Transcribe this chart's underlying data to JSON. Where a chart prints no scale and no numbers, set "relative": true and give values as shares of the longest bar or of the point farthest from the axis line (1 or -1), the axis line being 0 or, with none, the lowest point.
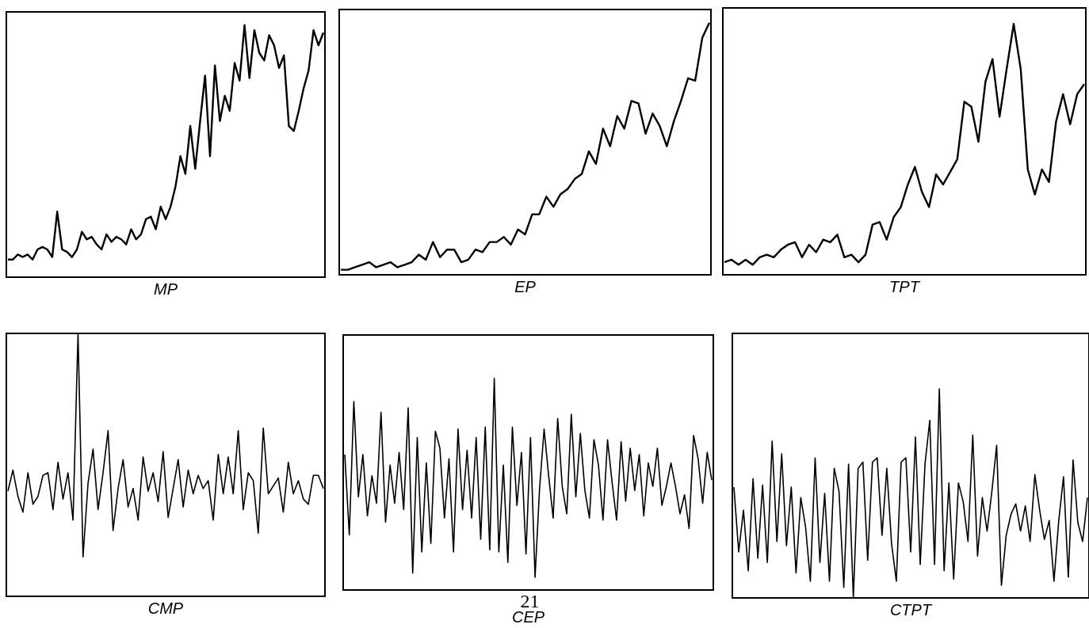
{
  "chart_data": [
    {
      "type": "line",
      "xlabel": "MP",
      "relative": true,
      "categories": [
        null,
        null,
        null,
        null,
        null,
        null,
        null,
        null,
        null,
        null,
        null,
        null,
        null,
        null,
        null,
        null,
        null,
        null,
        null,
        null,
        null,
        null,
        null,
        null,
        null,
        null,
        null,
        null,
        null,
        null,
        null,
        null,
        null,
        null,
        null,
        null,
        null,
        null,
        null,
        null,
        null,
        null,
        null,
        null,
        null,
        null,
        null,
        null,
        null,
        null,
        null,
        null,
        null,
        null,
        null,
        null,
        null,
        null,
        null,
        null,
        null,
        null,
        null,
        null,
        null
      ],
      "series": [
        {
          "color": "#000000",
          "values": [
            0.07,
            0.07,
            0.09,
            0.08,
            0.09,
            0.07,
            0.11,
            0.12,
            0.11,
            0.08,
            0.26,
            0.11,
            0.1,
            0.08,
            0.11,
            0.18,
            0.15,
            0.16,
            0.13,
            0.11,
            0.17,
            0.14,
            0.16,
            0.15,
            0.13,
            0.19,
            0.15,
            0.17,
            0.23,
            0.24,
            0.19,
            0.28,
            0.23,
            0.28,
            0.36,
            0.48,
            0.41,
            0.6,
            0.43,
            0.62,
            0.8,
            0.48,
            0.84,
            0.62,
            0.72,
            0.66,
            0.85,
            0.78,
            1,
            0.79,
            0.98,
            0.89,
            0.86,
            0.96,
            0.92,
            0.83,
            0.88,
            0.6,
            0.58,
            0.66,
            0.75,
            0.82,
            0.98,
            0.92,
            0.97
          ]
        }
      ]
    },
    {
      "type": "line",
      "xlabel": "EP",
      "relative": true,
      "categories": [
        null,
        null,
        null,
        null,
        null,
        null,
        null,
        null,
        null,
        null,
        null,
        null,
        null,
        null,
        null,
        null,
        null,
        null,
        null,
        null,
        null,
        null,
        null,
        null,
        null,
        null,
        null,
        null,
        null,
        null,
        null,
        null,
        null,
        null,
        null,
        null,
        null,
        null,
        null,
        null,
        null,
        null,
        null,
        null,
        null,
        null,
        null,
        null,
        null,
        null,
        null,
        null,
        null
      ],
      "series": [
        {
          "color": "#000000",
          "values": [
            0.02,
            0.02,
            0.03,
            0.04,
            0.05,
            0.03,
            0.04,
            0.05,
            0.03,
            0.04,
            0.05,
            0.08,
            0.06,
            0.13,
            0.07,
            0.1,
            0.1,
            0.05,
            0.06,
            0.1,
            0.09,
            0.13,
            0.13,
            0.15,
            0.12,
            0.18,
            0.16,
            0.24,
            0.24,
            0.31,
            0.27,
            0.32,
            0.34,
            0.38,
            0.4,
            0.49,
            0.44,
            0.58,
            0.51,
            0.63,
            0.58,
            0.69,
            0.68,
            0.56,
            0.64,
            0.59,
            0.51,
            0.61,
            0.69,
            0.78,
            0.77,
            0.94,
            1
          ]
        }
      ]
    },
    {
      "type": "line",
      "xlabel": "TPT",
      "relative": true,
      "categories": [
        null,
        null,
        null,
        null,
        null,
        null,
        null,
        null,
        null,
        null,
        null,
        null,
        null,
        null,
        null,
        null,
        null,
        null,
        null,
        null,
        null,
        null,
        null,
        null,
        null,
        null,
        null,
        null,
        null,
        null,
        null,
        null,
        null,
        null,
        null,
        null,
        null,
        null,
        null,
        null,
        null,
        null,
        null,
        null,
        null,
        null,
        null,
        null,
        null,
        null,
        null,
        null
      ],
      "series": [
        {
          "color": "#000000",
          "values": [
            0.05,
            0.06,
            0.04,
            0.06,
            0.04,
            0.07,
            0.08,
            0.07,
            0.1,
            0.12,
            0.13,
            0.07,
            0.12,
            0.09,
            0.14,
            0.13,
            0.16,
            0.07,
            0.08,
            0.05,
            0.08,
            0.2,
            0.21,
            0.14,
            0.23,
            0.27,
            0.36,
            0.43,
            0.33,
            0.27,
            0.4,
            0.36,
            0.41,
            0.46,
            0.69,
            0.67,
            0.53,
            0.77,
            0.86,
            0.63,
            0.82,
            1,
            0.82,
            0.42,
            0.32,
            0.42,
            0.37,
            0.61,
            0.72,
            0.6,
            0.72,
            0.76
          ]
        }
      ]
    },
    {
      "type": "line",
      "xlabel": "CMP",
      "relative": true,
      "categories": [
        null,
        null,
        null,
        null,
        null,
        null,
        null,
        null,
        null,
        null,
        null,
        null,
        null,
        null,
        null,
        null,
        null,
        null,
        null,
        null,
        null,
        null,
        null,
        null,
        null,
        null,
        null,
        null,
        null,
        null,
        null,
        null,
        null,
        null,
        null,
        null,
        null,
        null,
        null,
        null,
        null,
        null,
        null,
        null,
        null,
        null,
        null,
        null,
        null,
        null,
        null,
        null,
        null,
        null,
        null,
        null,
        null,
        null,
        null,
        null,
        null,
        null,
        null,
        null
      ],
      "series": [
        {
          "color": "#000000",
          "values": [
            0.4,
            0.48,
            0.38,
            0.32,
            0.47,
            0.35,
            0.38,
            0.46,
            0.47,
            0.33,
            0.51,
            0.37,
            0.47,
            0.29,
            1,
            0.15,
            0.43,
            0.56,
            0.33,
            0.47,
            0.63,
            0.25,
            0.41,
            0.52,
            0.34,
            0.41,
            0.29,
            0.53,
            0.4,
            0.47,
            0.36,
            0.55,
            0.3,
            0.41,
            0.52,
            0.34,
            0.48,
            0.39,
            0.46,
            0.41,
            0.44,
            0.29,
            0.54,
            0.39,
            0.53,
            0.39,
            0.63,
            0.33,
            0.47,
            0.44,
            0.24,
            0.64,
            0.39,
            0.42,
            0.45,
            0.32,
            0.51,
            0.39,
            0.44,
            0.37,
            0.35,
            0.46,
            0.46,
            0.41
          ]
        }
      ]
    },
    {
      "type": "line",
      "xlabel": "CEP",
      "relative": true,
      "annotations": [
        "21"
      ],
      "categories": [
        null,
        null,
        null,
        null,
        null,
        null,
        null,
        null,
        null,
        null,
        null,
        null,
        null,
        null,
        null,
        null,
        null,
        null,
        null,
        null,
        null,
        null,
        null,
        null,
        null,
        null,
        null,
        null,
        null,
        null,
        null,
        null,
        null,
        null,
        null,
        null,
        null,
        null,
        null,
        null,
        null,
        null,
        null,
        null,
        null,
        null,
        null,
        null,
        null,
        null,
        null,
        null,
        null,
        null,
        null,
        null,
        null,
        null,
        null,
        null,
        null,
        null,
        null,
        null,
        null,
        null,
        null,
        null,
        null,
        null,
        null,
        null,
        null,
        null,
        null,
        null,
        null,
        null,
        null,
        null,
        null,
        null
      ],
      "series": [
        {
          "color": "#000000",
          "values": [
            0.64,
            0.26,
            0.89,
            0.44,
            0.64,
            0.35,
            0.54,
            0.41,
            0.84,
            0.32,
            0.59,
            0.41,
            0.65,
            0.38,
            0.86,
            0.08,
            0.72,
            0.18,
            0.6,
            0.22,
            0.75,
            0.67,
            0.34,
            0.62,
            0.18,
            0.76,
            0.38,
            0.66,
            0.34,
            0.72,
            0.24,
            0.77,
            0.19,
            1,
            0.18,
            0.59,
            0.13,
            0.77,
            0.4,
            0.65,
            0.17,
            0.72,
            0.06,
            0.48,
            0.76,
            0.54,
            0.34,
            0.81,
            0.49,
            0.36,
            0.83,
            0.44,
            0.74,
            0.47,
            0.34,
            0.71,
            0.59,
            0.33,
            0.71,
            0.51,
            0.33,
            0.7,
            0.42,
            0.67,
            0.47,
            0.64,
            0.35,
            0.6,
            0.49,
            0.67,
            0.4,
            0.49,
            0.6,
            0.49,
            0.36,
            0.45,
            0.29,
            0.73,
            0.62,
            0.41,
            0.65,
            0.52
          ]
        }
      ]
    },
    {
      "type": "line",
      "xlabel": "CTPT",
      "relative": true,
      "categories": [
        null,
        null,
        null,
        null,
        null,
        null,
        null,
        null,
        null,
        null,
        null,
        null,
        null,
        null,
        null,
        null,
        null,
        null,
        null,
        null,
        null,
        null,
        null,
        null,
        null,
        null,
        null,
        null,
        null,
        null,
        null,
        null,
        null,
        null,
        null,
        null,
        null,
        null,
        null,
        null,
        null,
        null,
        null,
        null,
        null,
        null,
        null,
        null,
        null,
        null,
        null,
        null,
        null,
        null,
        null,
        null,
        null,
        null,
        null,
        null,
        null,
        null,
        null,
        null,
        null,
        null,
        null,
        null,
        null,
        null,
        null,
        null,
        null,
        null,
        null
      ],
      "series": [
        {
          "color": "#000000",
          "values": [
            0.53,
            0.22,
            0.42,
            0.13,
            0.57,
            0.19,
            0.54,
            0.17,
            0.75,
            0.27,
            0.69,
            0.25,
            0.53,
            0.12,
            0.48,
            0.34,
            0.08,
            0.67,
            0.17,
            0.5,
            0.08,
            0.62,
            0.51,
            0.05,
            0.64,
            0,
            0.62,
            0.65,
            0.18,
            0.65,
            0.67,
            0.3,
            0.62,
            0.26,
            0.08,
            0.65,
            0.67,
            0.22,
            0.77,
            0.16,
            0.64,
            0.85,
            0.16,
            1,
            0.13,
            0.55,
            0.09,
            0.55,
            0.46,
            0.27,
            0.78,
            0.2,
            0.48,
            0.32,
            0.51,
            0.73,
            0.06,
            0.3,
            0.4,
            0.45,
            0.32,
            0.44,
            0.27,
            0.59,
            0.42,
            0.28,
            0.37,
            0.08,
            0.37,
            0.58,
            0.1,
            0.66,
            0.36,
            0.27,
            0.48
          ]
        }
      ]
    }
  ]
}
